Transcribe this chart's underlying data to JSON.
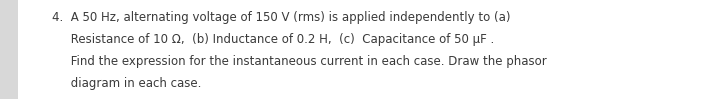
{
  "text_lines": [
    "4.  A 50 Hz, alternating voltage of 150 V (rms) is applied independently to (a)",
    "     Resistance of 10 Ω,  (b) Inductance of 0.2 H,  (c)  Capacitance of 50 μF .",
    "     Find the expression for the instantaneous current in each case. Draw the phasor",
    "     diagram in each case."
  ],
  "background_color": "#ffffff",
  "left_strip_color": "#d8d8d8",
  "text_color": "#3a3a3a",
  "font_size": 8.5,
  "fig_width": 7.2,
  "fig_height": 0.99,
  "dpi": 100
}
